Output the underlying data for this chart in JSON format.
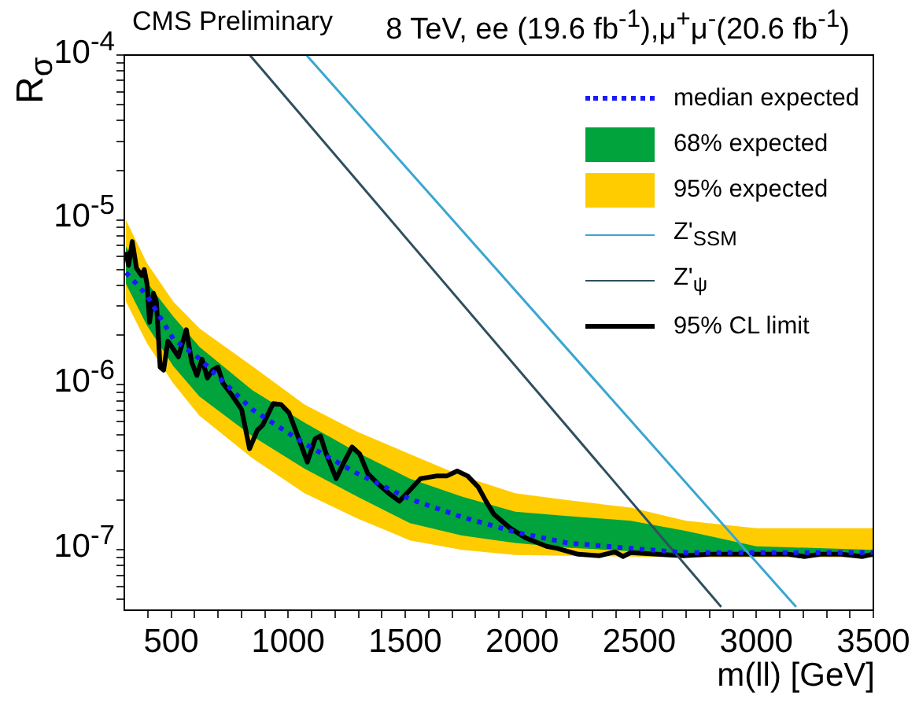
{
  "chart_data": {
    "type": "line",
    "title": "CMS Preliminary",
    "subtitle": "8 TeV, ee (19.6 fb$^{-1}$),μ$^{+}$μ$^{-}$(20.6 fb$^{-1}$)",
    "xlabel": "m(ll) [GeV]",
    "ylabel": "R$_{σ}$",
    "log": "y",
    "legend": "top right",
    "grid": false,
    "xlim": [
      300,
      3500
    ],
    "ylim": [
      4.3e-08,
      0.0001
    ],
    "xticks": [
      {
        "value": 400,
        "label": null
      },
      500,
      {
        "value": 600,
        "label": null
      },
      {
        "value": 700,
        "label": null
      },
      {
        "value": 800,
        "label": null
      },
      {
        "value": 900,
        "label": null
      },
      1000,
      {
        "value": 1100,
        "label": null
      },
      {
        "value": 1200,
        "label": null
      },
      {
        "value": 1300,
        "label": null
      },
      {
        "value": 1400,
        "label": null
      },
      1500,
      {
        "value": 1600,
        "label": null
      },
      {
        "value": 1700,
        "label": null
      },
      {
        "value": 1800,
        "label": null
      },
      {
        "value": 1900,
        "label": null
      },
      2000,
      {
        "value": 2100,
        "label": null
      },
      {
        "value": 2200,
        "label": null
      },
      {
        "value": 2300,
        "label": null
      },
      {
        "value": 2400,
        "label": null
      },
      2500,
      {
        "value": 2600,
        "label": null
      },
      {
        "value": 2700,
        "label": null
      },
      {
        "value": 2800,
        "label": null
      },
      {
        "value": 2900,
        "label": null
      },
      3000,
      {
        "value": 3100,
        "label": null
      },
      {
        "value": 3200,
        "label": null
      },
      {
        "value": 3300,
        "label": null
      },
      {
        "value": 3400,
        "label": null
      },
      3500
    ],
    "yticks": [
      {
        "value": 5e-08,
        "label": null
      },
      {
        "value": 6e-08,
        "label": null
      },
      {
        "value": 7e-08,
        "label": null
      },
      {
        "value": 8e-08,
        "label": null
      },
      {
        "value": 9e-08,
        "label": null
      },
      {
        "value": 1e-07,
        "label": "10$^{-7}$"
      },
      {
        "value": 2e-07,
        "label": null
      },
      {
        "value": 3e-07,
        "label": null
      },
      {
        "value": 4e-07,
        "label": null
      },
      {
        "value": 5e-07,
        "label": null
      },
      {
        "value": 6e-07,
        "label": null
      },
      {
        "value": 7e-07,
        "label": null
      },
      {
        "value": 8e-07,
        "label": null
      },
      {
        "value": 9e-07,
        "label": null
      },
      {
        "value": 1e-06,
        "label": "10$^{-6}$"
      },
      {
        "value": 2e-06,
        "label": null
      },
      {
        "value": 3e-06,
        "label": null
      },
      {
        "value": 4e-06,
        "label": null
      },
      {
        "value": 5e-06,
        "label": null
      },
      {
        "value": 6e-06,
        "label": null
      },
      {
        "value": 7e-06,
        "label": null
      },
      {
        "value": 8e-06,
        "label": null
      },
      {
        "value": 9e-06,
        "label": null
      },
      {
        "value": 1e-05,
        "label": "10$^{-5}$"
      },
      {
        "value": 2e-05,
        "label": null
      },
      {
        "value": 3e-05,
        "label": null
      },
      {
        "value": 4e-05,
        "label": null
      },
      {
        "value": 5e-05,
        "label": null
      },
      {
        "value": 6e-05,
        "label": null
      },
      {
        "value": 7e-05,
        "label": null
      },
      {
        "value": 8e-05,
        "label": null
      },
      {
        "value": 9e-05,
        "label": null
      },
      {
        "value": 0.0001,
        "label": "10$^{-4}$"
      }
    ],
    "series": [
      {
        "name": "95% expected",
        "type": "area",
        "color": "#ffcc00",
        "x": [
          307,
          396,
          509,
          621,
          846,
          1070,
          1295,
          1520,
          1742,
          1970,
          2193,
          2463,
          2700,
          3000,
          3500
        ],
        "values": [
          null,
          null,
          null,
          null,
          null,
          null,
          null,
          null,
          null,
          null,
          null,
          null,
          null,
          null,
          null
        ],
        "lower": [
          3.2e-06,
          1.8e-06,
          1.02e-06,
          6.5e-07,
          3.6e-07,
          2.2e-07,
          1.55e-07,
          1.14e-07,
          1e-07,
          9.3e-08,
          9.2e-08,
          9.1e-08,
          9e-08,
          9e-08,
          9e-08
        ],
        "upper": [
          1e-05,
          5.5e-06,
          3.2e-06,
          2.2e-06,
          1.3e-06,
          7.6e-07,
          5.2e-07,
          3.8e-07,
          2.8e-07,
          2.2e-07,
          2e-07,
          1.8e-07,
          1.5e-07,
          1.35e-07,
          1.35e-07
        ]
      },
      {
        "name": "68% expected",
        "type": "area",
        "color": "#00a33c",
        "x": [
          307,
          396,
          509,
          621,
          846,
          1070,
          1295,
          1520,
          1742,
          1970,
          2193,
          2463,
          2700,
          3000,
          3500
        ],
        "values": [
          null,
          null,
          null,
          null,
          null,
          null,
          null,
          null,
          null,
          null,
          null,
          null,
          null,
          null,
          null
        ],
        "lower": [
          4.1e-06,
          2.3e-06,
          1.3e-06,
          8.5e-07,
          4.9e-07,
          3.1e-07,
          2.1e-07,
          1.45e-07,
          1.22e-07,
          1.1e-07,
          1.03e-07,
          9.8e-08,
          9.4e-08,
          9.4e-08,
          9.4e-08
        ],
        "upper": [
          6.9e-06,
          4.2e-06,
          2.6e-06,
          1.7e-06,
          9.3e-07,
          5.9e-07,
          3.9e-07,
          2.7e-07,
          2.1e-07,
          1.7e-07,
          1.6e-07,
          1.5e-07,
          1.3e-07,
          1.05e-07,
          1e-07
        ]
      },
      {
        "name": "median expected",
        "type": "line",
        "color": "#1a1aff",
        "line_style": "dotted",
        "x": [
          307,
          396,
          509,
          621,
          846,
          1070,
          1295,
          1520,
          1742,
          1970,
          2193,
          2463,
          2700,
          3000,
          3500
        ],
        "values": [
          4.8e-06,
          3.5e-06,
          1.9e-06,
          1.44e-06,
          7.1e-07,
          4.4e-07,
          2.9e-07,
          2.03e-07,
          1.58e-07,
          1.28e-07,
          1.1e-07,
          1.02e-07,
          9.6e-08,
          9.6e-08,
          9.6e-08
        ]
      },
      {
        "name": "Z'$_{SSM}$",
        "type": "line",
        "color": "#3aa6d0",
        "line_style": "solid",
        "x": [
          1078,
          3170
        ],
        "values": [
          0.0001,
          4.5e-08
        ]
      },
      {
        "name": "Z'$_{ψ}$",
        "type": "line",
        "color": "#2f4f5f",
        "line_style": "solid",
        "x": [
          836,
          2850
        ],
        "values": [
          0.0001,
          4.5e-08
        ]
      },
      {
        "name": "95% CL limit",
        "type": "line",
        "color": "#000000",
        "line_style": "solid",
        "x": [
          307,
          318,
          334,
          352,
          374,
          385,
          397,
          408,
          424,
          437,
          453,
          468,
          486,
          509,
          531,
          565,
          588,
          610,
          632,
          655,
          677,
          700,
          722,
          756,
          801,
          835,
          868,
          891,
          936,
          969,
          1003,
          1048,
          1082,
          1115,
          1138,
          1160,
          1205,
          1239,
          1273,
          1306,
          1340,
          1385,
          1430,
          1475,
          1520,
          1565,
          1632,
          1677,
          1722,
          1767,
          1812,
          1845,
          1879,
          1946,
          2014,
          2104,
          2149,
          2239,
          2328,
          2396,
          2430,
          2463,
          2576,
          2688,
          2800,
          2913,
          3025,
          3137,
          3205,
          3272,
          3362,
          3452,
          3500
        ],
        "values": [
          6.4e-06,
          5.3e-06,
          7.4e-06,
          5.1e-06,
          4.6e-06,
          5e-06,
          4.1e-06,
          2.4e-06,
          3.6e-06,
          3.2e-06,
          1.28e-06,
          1.23e-06,
          1.84e-06,
          1.65e-06,
          1.48e-06,
          2.16e-06,
          1.37e-06,
          1.14e-06,
          1.43e-06,
          1.1e-06,
          1.23e-06,
          1.28e-06,
          1.02e-06,
          8.8e-07,
          7.1e-07,
          4.1e-07,
          5.3e-07,
          5.7e-07,
          7.7e-07,
          7.6e-07,
          6.8e-07,
          4.6e-07,
          3.4e-07,
          4.7e-07,
          4.9e-07,
          3.9e-07,
          2.7e-07,
          3.4e-07,
          4.2e-07,
          3.8e-07,
          2.9e-07,
          2.5e-07,
          2.2e-07,
          1.97e-07,
          2.3e-07,
          2.7e-07,
          2.8e-07,
          2.8e-07,
          3e-07,
          2.8e-07,
          2.4e-07,
          1.97e-07,
          1.64e-07,
          1.36e-07,
          1.18e-07,
          1.05e-07,
          1.02e-07,
          9.4e-08,
          9.2e-08,
          9.7e-08,
          9.1e-08,
          9.6e-08,
          9.4e-08,
          9.2e-08,
          9.4e-08,
          9.4e-08,
          9.4e-08,
          9.4e-08,
          9.1e-08,
          9.4e-08,
          9.4e-08,
          9.1e-08,
          9.4e-08
        ]
      }
    ]
  }
}
